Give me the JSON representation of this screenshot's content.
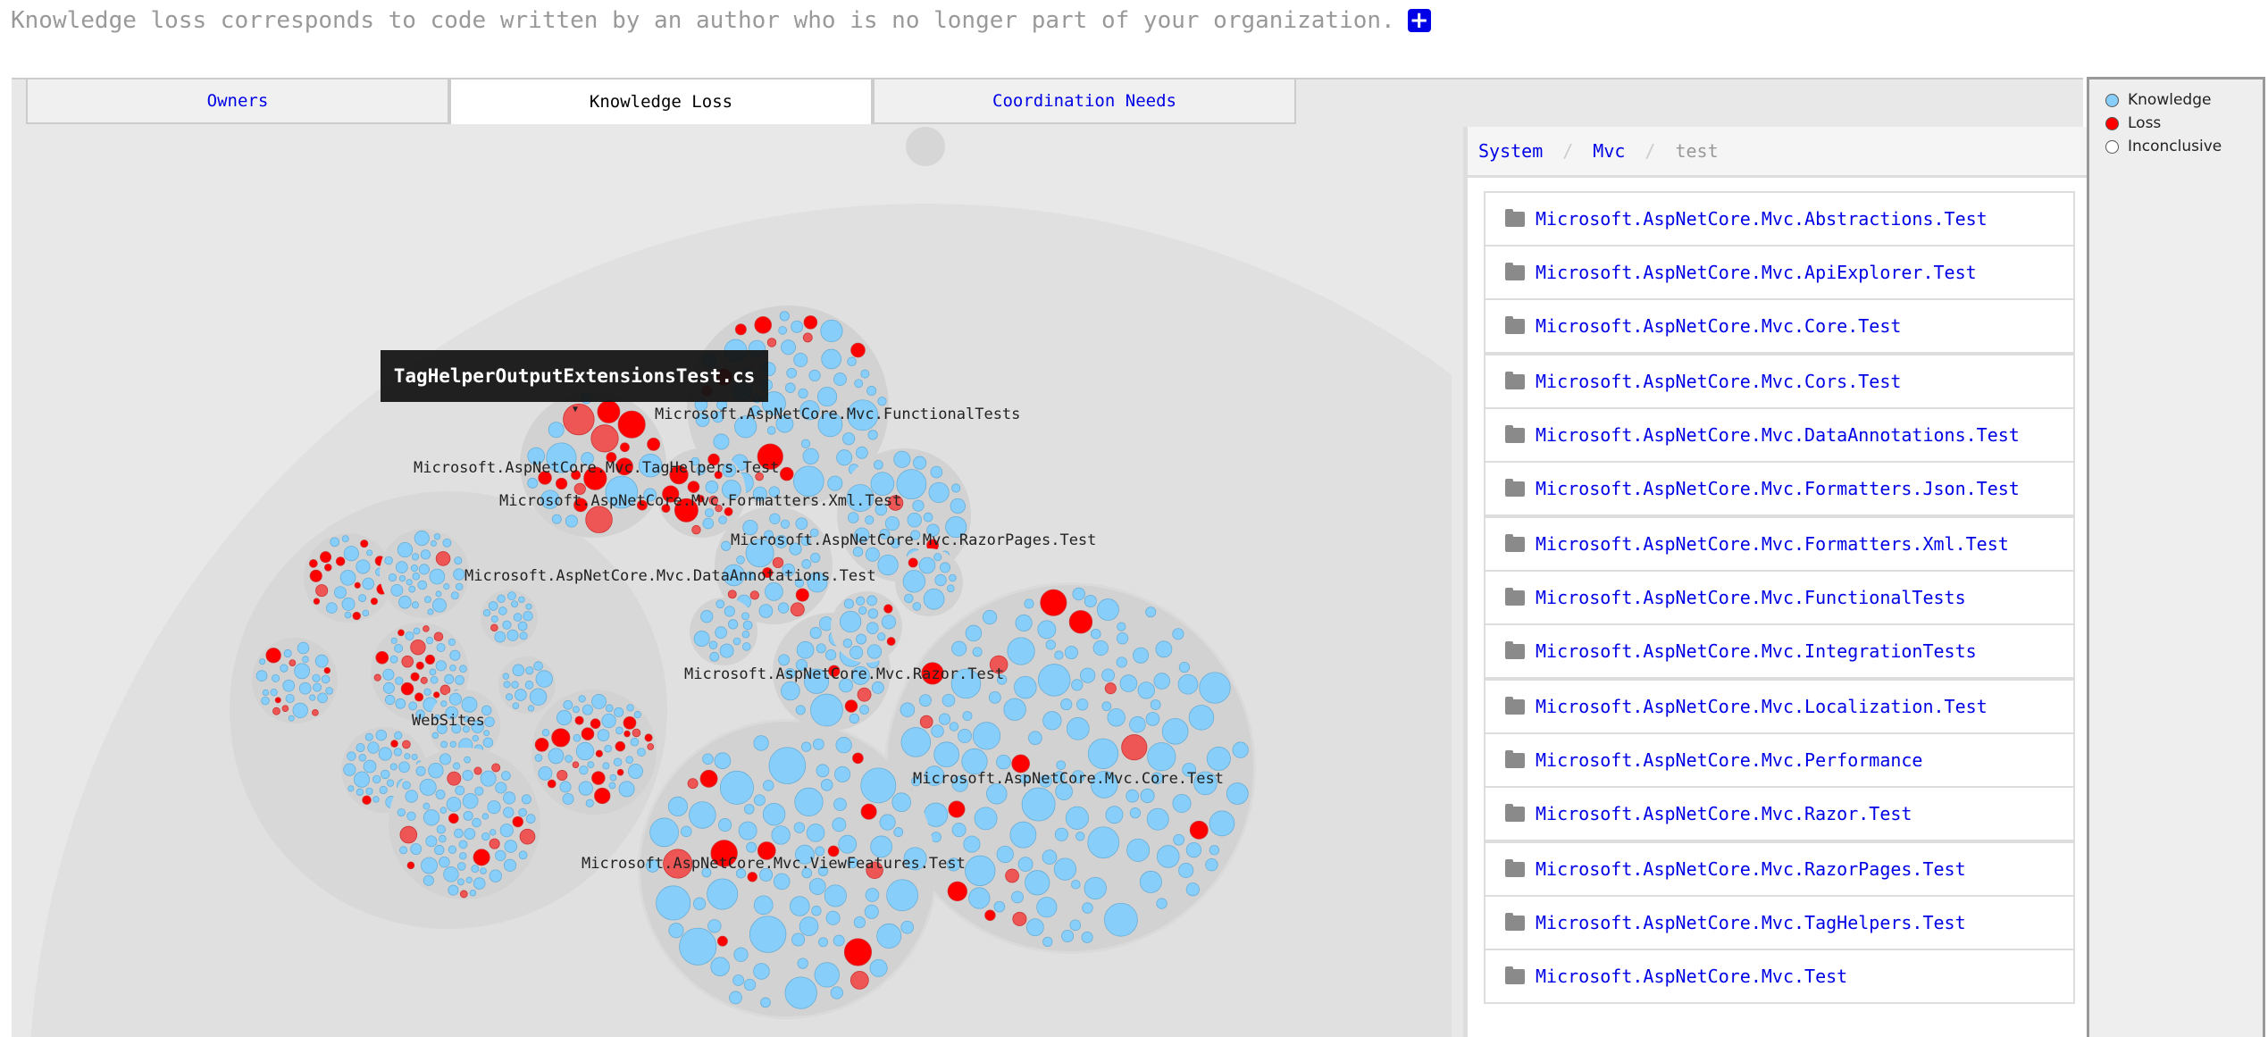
{
  "header": {
    "text": "Knowledge loss corresponds to code written by an author who is no longer part of your organization.",
    "expand_icon": "plus-square-icon"
  },
  "tabs": [
    {
      "label": "Owners",
      "active": false
    },
    {
      "label": "Knowledge Loss",
      "active": true
    },
    {
      "label": "Coordination Needs",
      "active": false
    }
  ],
  "viz": {
    "tooltip": "TagHelperOutputExtensionsTest.cs",
    "labels": [
      "Microsoft.AspNetCore.Mvc.FunctionalTests",
      "Microsoft.AspNetCore.Mvc.TagHelpers.Test",
      "Microsoft.AspNetCore.Mvc.Formatters.Xml.Test",
      "Microsoft.AspNetCore.Mvc.RazorPages.Test",
      "Microsoft.AspNetCore.Mvc.DataAnnotations.Test",
      "Microsoft.AspNetCore.Mvc.Razor.Test",
      "WebSites",
      "Microsoft.AspNetCore.Mvc.Core.Test",
      "Microsoft.AspNetCore.Mvc.ViewFeatures.Test"
    ],
    "colors": {
      "knowledge": "#87cefa",
      "loss": "#ff0000",
      "partial_loss": "#ee5555",
      "container": "#dcdcdc",
      "background": "#e8e8e8"
    }
  },
  "breadcrumb": {
    "items": [
      "System",
      "Mvc"
    ],
    "current": "test"
  },
  "folders": [
    "Microsoft.AspNetCore.Mvc.Abstractions.Test",
    "Microsoft.AspNetCore.Mvc.ApiExplorer.Test",
    "Microsoft.AspNetCore.Mvc.Core.Test",
    "Microsoft.AspNetCore.Mvc.Cors.Test",
    "Microsoft.AspNetCore.Mvc.DataAnnotations.Test",
    "Microsoft.AspNetCore.Mvc.Formatters.Json.Test",
    "Microsoft.AspNetCore.Mvc.Formatters.Xml.Test",
    "Microsoft.AspNetCore.Mvc.FunctionalTests",
    "Microsoft.AspNetCore.Mvc.IntegrationTests",
    "Microsoft.AspNetCore.Mvc.Localization.Test",
    "Microsoft.AspNetCore.Mvc.Performance",
    "Microsoft.AspNetCore.Mvc.Razor.Test",
    "Microsoft.AspNetCore.Mvc.RazorPages.Test",
    "Microsoft.AspNetCore.Mvc.TagHelpers.Test",
    "Microsoft.AspNetCore.Mvc.Test"
  ],
  "legend": [
    {
      "label": "Knowledge",
      "color": "#87cefa"
    },
    {
      "label": "Loss",
      "color": "#ff0000"
    },
    {
      "label": "Inconclusive",
      "color": "#ffffff"
    }
  ]
}
